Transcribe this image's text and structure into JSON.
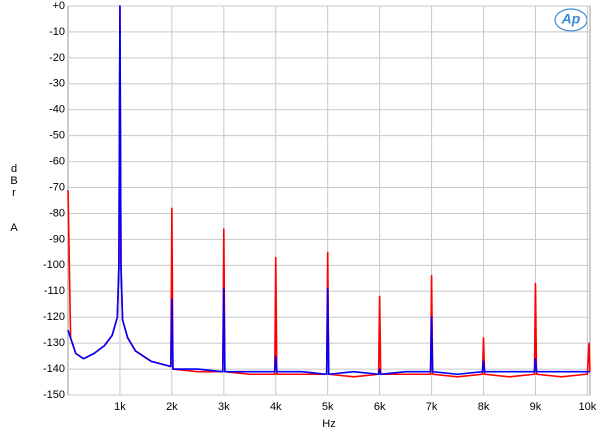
{
  "chart_data": {
    "type": "line",
    "logo": "Ap",
    "ylabel": "dBr",
    "ylabel_weighting": "A",
    "xlabel": "Hz",
    "grid": true,
    "xlim": [
      0,
      10050
    ],
    "ylim": [
      -150,
      0
    ],
    "yticks": [
      {
        "value": 0,
        "label": "+0"
      },
      -10,
      -20,
      -30,
      -40,
      -50,
      -60,
      -70,
      -80,
      -90,
      -100,
      -110,
      -120,
      -130,
      -140,
      -150
    ],
    "xticks": [
      {
        "value": 1000,
        "label": "1k"
      },
      {
        "value": 2000,
        "label": "2k"
      },
      {
        "value": 3000,
        "label": "3k"
      },
      {
        "value": 4000,
        "label": "4k"
      },
      {
        "value": 5000,
        "label": "5k"
      },
      {
        "value": 6000,
        "label": "6k"
      },
      {
        "value": 7000,
        "label": "7k"
      },
      {
        "value": 8000,
        "label": "8k"
      },
      {
        "value": 9000,
        "label": "9k"
      },
      {
        "value": 10000,
        "label": "10k"
      }
    ],
    "x": [
      0,
      50,
      150,
      300,
      500,
      700,
      850,
      950,
      980,
      1000,
      1020,
      1050,
      1150,
      1300,
      1600,
      1980,
      2000,
      2020,
      2500,
      2980,
      3000,
      3020,
      3500,
      3980,
      4000,
      4020,
      4500,
      4980,
      5000,
      5020,
      5500,
      5980,
      6000,
      6020,
      6500,
      6980,
      7000,
      7020,
      7500,
      7980,
      8000,
      8020,
      8500,
      8980,
      9000,
      9020,
      9500,
      9980,
      10000,
      10030,
      10050
    ],
    "series": [
      {
        "color": "#ff0000",
        "values": [
          -71,
          -128,
          -134,
          -136,
          -134,
          -131,
          -127,
          -120,
          -100,
          0,
          -100,
          -121,
          -128,
          -133,
          -137,
          -139,
          -78,
          -140,
          -141,
          -141,
          -86,
          -141,
          -142,
          -142,
          -97,
          -142,
          -142,
          -142,
          -95,
          -142,
          -143,
          -142,
          -112,
          -142,
          -142,
          -142,
          -104,
          -142,
          -143,
          -142,
          -128,
          -142,
          -143,
          -142,
          -107,
          -142,
          -143,
          -142,
          -142,
          -130,
          -141
        ]
      },
      {
        "color": "#0000ff",
        "values": [
          -125,
          -128,
          -134,
          -136,
          -134,
          -131,
          -127,
          -120,
          -100,
          0,
          -100,
          -121,
          -128,
          -133,
          -137,
          -139,
          -113,
          -140,
          -140,
          -141,
          -109,
          -141,
          -141,
          -141,
          -135,
          -141,
          -141,
          -142,
          -109,
          -142,
          -141,
          -142,
          -140,
          -142,
          -141,
          -141,
          -120,
          -141,
          -142,
          -141,
          -137,
          -141,
          -141,
          -141,
          -136,
          -141,
          -141,
          -141,
          -141,
          -141,
          -141
        ]
      }
    ]
  }
}
